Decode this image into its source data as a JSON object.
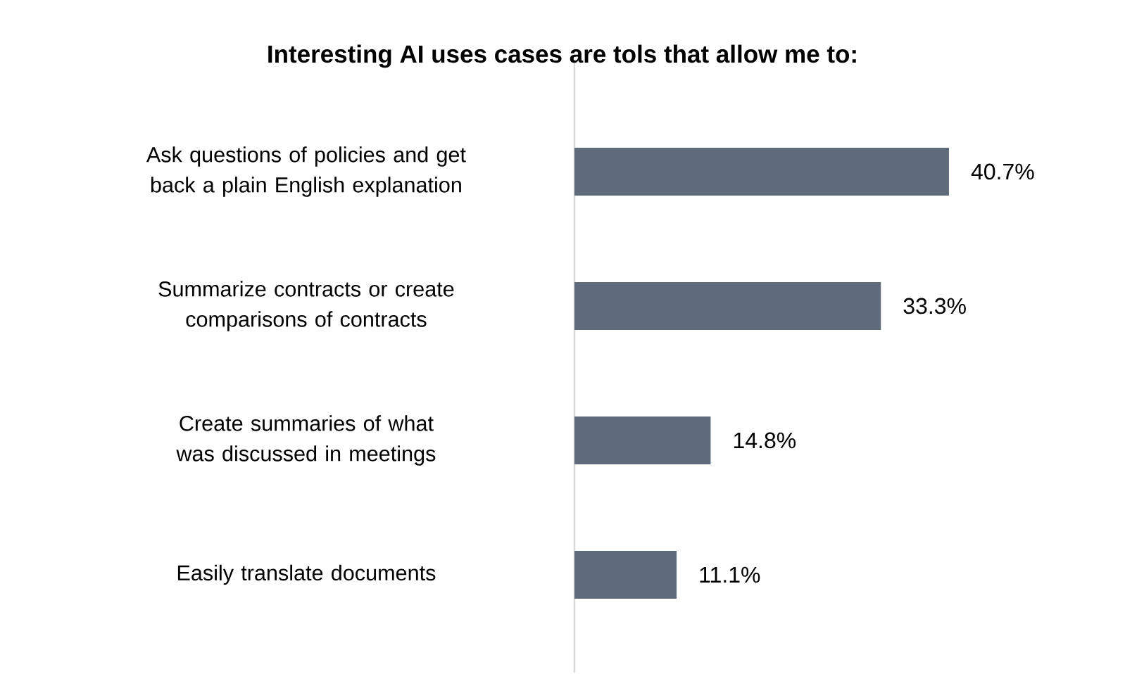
{
  "chart_data": {
    "type": "bar",
    "orientation": "horizontal",
    "title": "Interesting AI uses cases are tols that allow me to:",
    "categories": [
      "Ask questions of policies and get back a plain English explanation",
      "Summarize contracts or create comparisons of contracts",
      "Create summaries of what was discussed in meetings",
      "Easily translate documents"
    ],
    "values": [
      40.7,
      33.3,
      14.8,
      11.1
    ],
    "value_labels": [
      "40.7%",
      "33.3%",
      "14.8%",
      "11.1%"
    ],
    "color": "#5f6b7a",
    "tick_labels": "y"
  }
}
